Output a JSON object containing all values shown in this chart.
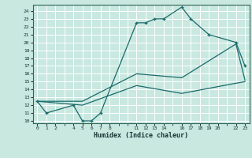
{
  "xlabel": "Humidex (Indice chaleur)",
  "background_color": "#c8e8e0",
  "grid_color": "#ffffff",
  "line_color": "#1a6b6b",
  "xlim": [
    -0.5,
    23.5
  ],
  "ylim": [
    9.7,
    24.8
  ],
  "x_grid_ticks": [
    0,
    1,
    2,
    3,
    4,
    5,
    6,
    7,
    8,
    9,
    10,
    11,
    12,
    13,
    14,
    15,
    16,
    17,
    18,
    19,
    20,
    21,
    22,
    23
  ],
  "y_grid_ticks": [
    10,
    11,
    12,
    13,
    14,
    15,
    16,
    17,
    18,
    19,
    20,
    21,
    22,
    23,
    24
  ],
  "x_label_ticks": [
    0,
    1,
    2,
    4,
    5,
    6,
    7,
    8,
    11,
    12,
    13,
    14,
    16,
    17,
    18,
    19,
    20,
    22,
    23
  ],
  "y_label_ticks": [
    10,
    11,
    12,
    13,
    14,
    15,
    16,
    17,
    18,
    19,
    20,
    21,
    22,
    23,
    24
  ],
  "series1_x": [
    0,
    1,
    4,
    5,
    6,
    7,
    11,
    12,
    13,
    14,
    16,
    17,
    19,
    22,
    23
  ],
  "series1_y": [
    12.5,
    11.0,
    12.0,
    10.0,
    10.0,
    11.0,
    22.5,
    22.5,
    23.0,
    23.0,
    24.5,
    23.0,
    21.0,
    20.0,
    17.0
  ],
  "series2_x": [
    0,
    5,
    11,
    16,
    22,
    23
  ],
  "series2_y": [
    12.5,
    12.0,
    14.5,
    13.5,
    14.8,
    15.0
  ],
  "series3_x": [
    0,
    5,
    11,
    16,
    22,
    23
  ],
  "series3_y": [
    12.5,
    12.5,
    16.0,
    15.5,
    19.8,
    15.2
  ]
}
